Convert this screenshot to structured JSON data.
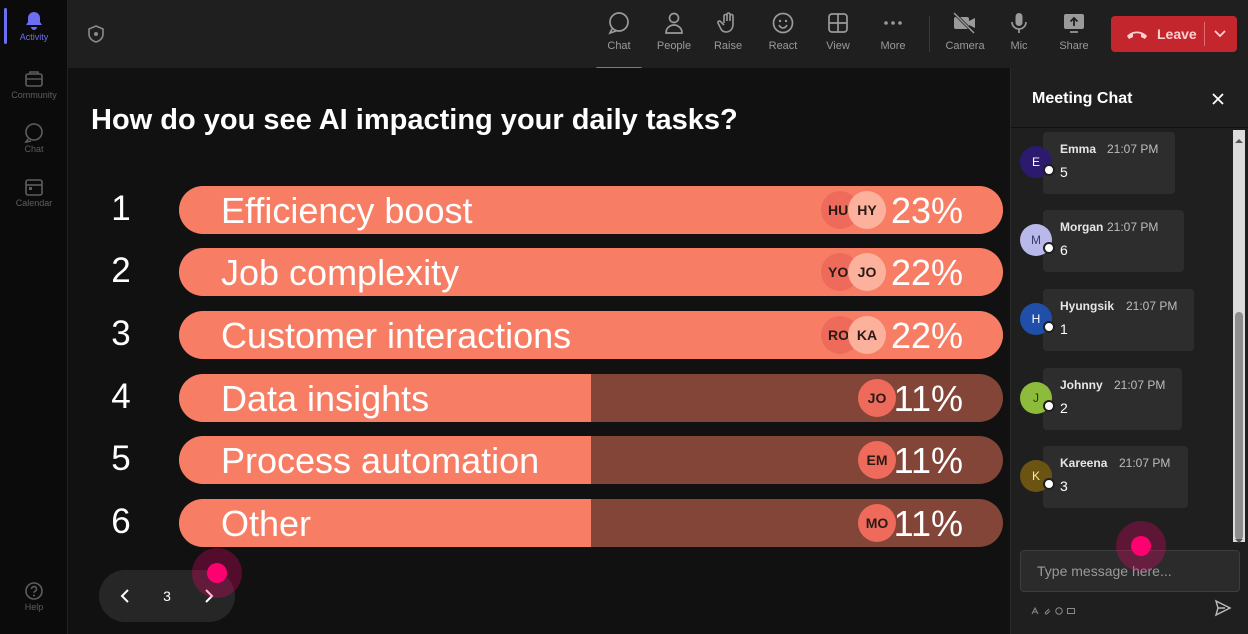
{
  "rail": {
    "items": [
      {
        "label": "Activity"
      },
      {
        "label": "Community"
      },
      {
        "label": "Chat"
      },
      {
        "label": "Calendar"
      }
    ],
    "help": "Help"
  },
  "toolbar": {
    "items": [
      {
        "label": "Chat"
      },
      {
        "label": "People"
      },
      {
        "label": "Raise"
      },
      {
        "label": "React"
      },
      {
        "label": "View"
      },
      {
        "label": "More"
      },
      {
        "label": "Camera"
      },
      {
        "label": "Mic"
      },
      {
        "label": "Share"
      }
    ],
    "leave_label": "Leave"
  },
  "poll": {
    "question": "How do you see AI impacting your daily tasks?",
    "options": [
      {
        "num": "1",
        "label": "Efficiency boost",
        "pct_text": "23%",
        "pct": 23,
        "avatars": [
          "HU",
          "HY"
        ]
      },
      {
        "num": "2",
        "label": "Job complexity",
        "pct_text": "22%",
        "pct": 22,
        "avatars": [
          "YO",
          "JO"
        ]
      },
      {
        "num": "3",
        "label": "Customer interactions",
        "pct_text": "22%",
        "pct": 22,
        "avatars": [
          "RO",
          "KA"
        ]
      },
      {
        "num": "4",
        "label": "Data insights",
        "pct_text": "11%",
        "pct": 11,
        "avatars": [
          "JO"
        ]
      },
      {
        "num": "5",
        "label": "Process automation",
        "pct_text": "11%",
        "pct": 11,
        "avatars": [
          "EM"
        ]
      },
      {
        "num": "6",
        "label": "Other",
        "pct_text": "11%",
        "pct": 11,
        "avatars": [
          "MO"
        ]
      }
    ]
  },
  "pager": {
    "page": "3"
  },
  "chat": {
    "title": "Meeting Chat",
    "messages": [
      {
        "initial": "E",
        "name": "Emma",
        "time": "21:07 PM",
        "text": "5",
        "color": "#2b1a6e",
        "initial_color": "#ffffff"
      },
      {
        "initial": "M",
        "name": "Morgan",
        "time": "21:07 PM",
        "text": "6",
        "color": "#b9b8ea",
        "initial_color": "#3a3a6a"
      },
      {
        "initial": "H",
        "name": "Hyungsik",
        "time": "21:07 PM",
        "text": "1",
        "color": "#1f4fa8",
        "initial_color": "#ffffff"
      },
      {
        "initial": "J",
        "name": "Johnny",
        "time": "21:07 PM",
        "text": "2",
        "color": "#8dbb3b",
        "initial_color": "#1f3d08"
      },
      {
        "initial": "K",
        "name": "Kareena",
        "time": "21:07 PM",
        "text": "3",
        "color": "#6b5412",
        "initial_color": "#ffe7a8"
      }
    ],
    "compose_placeholder": "Type message here..."
  },
  "colors": {
    "bar_fill": "#f77e64",
    "bar_track": "#824538",
    "leave": "#c4262e",
    "accent": "#6b6ef0",
    "cursor": "#ff0070"
  }
}
